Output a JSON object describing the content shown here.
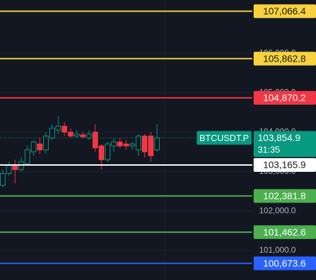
{
  "chart_data": {
    "type": "candlestick",
    "ylim": [
      100250,
      107350
    ],
    "yticks": [
      {
        "value": 101000,
        "label": "101,000.0"
      },
      {
        "value": 102000,
        "label": "102,000.0"
      },
      {
        "value": 103000,
        "label": "103,000.0"
      },
      {
        "value": 104000,
        "label": "104,000.0"
      },
      {
        "value": 105000,
        "label": "105,000.0"
      },
      {
        "value": 106000,
        "label": "106,000.0"
      }
    ],
    "grid": true,
    "up_color": "#089981",
    "down_color": "#f23645",
    "open": [
      102650,
      102950,
      103150,
      103050,
      103200,
      103500,
      103700,
      103550,
      103850,
      104050,
      104150,
      104000,
      103900,
      103930,
      103850,
      104000,
      103650,
      103300,
      103650,
      103750,
      103700,
      103650,
      103550,
      103900,
      103900,
      103550
    ],
    "high": [
      103050,
      103250,
      103300,
      103350,
      103650,
      103800,
      103850,
      104000,
      104200,
      104400,
      104250,
      104100,
      104050,
      104000,
      104050,
      104200,
      103700,
      103750,
      103850,
      103850,
      103800,
      103750,
      103950,
      103950,
      104000,
      104200
    ],
    "low": [
      102600,
      102900,
      102700,
      103000,
      103150,
      103400,
      103450,
      103450,
      103800,
      103950,
      103900,
      103850,
      103850,
      103850,
      103800,
      103500,
      103050,
      103250,
      103500,
      103600,
      103550,
      103550,
      103400,
      103350,
      103250,
      103500
    ],
    "close": [
      102950,
      103150,
      103050,
      103250,
      103550,
      103750,
      103550,
      103900,
      104100,
      104150,
      104000,
      103900,
      103950,
      103880,
      103950,
      103600,
      103300,
      103700,
      103750,
      103650,
      103650,
      103700,
      103900,
      103500,
      103400,
      103854.9
    ],
    "levels": [
      {
        "value": 107066.4,
        "value_label": "107,066.4",
        "color": "#f7d23e"
      },
      {
        "value": 105862.8,
        "value_label": "105,862.8",
        "color": "#f7d23e"
      },
      {
        "value": 104870.2,
        "value_label": "104,870.2",
        "color": "#f23645"
      },
      {
        "value": 103165.9,
        "value_label": "103,165.9",
        "color": "#ffffff"
      },
      {
        "value": 102381.8,
        "value_label": "102,381.8",
        "color": "#4caf50"
      },
      {
        "value": 101462.6,
        "value_label": "101,462.6",
        "color": "#4caf50"
      },
      {
        "value": 100673.6,
        "value_label": "100,673.6",
        "color": "#2962ff"
      }
    ],
    "last": {
      "symbol": "BTCUSDT.P",
      "value": 103854.9,
      "value_label": "103,854.9",
      "countdown": "31:35",
      "color": "#089981"
    }
  }
}
